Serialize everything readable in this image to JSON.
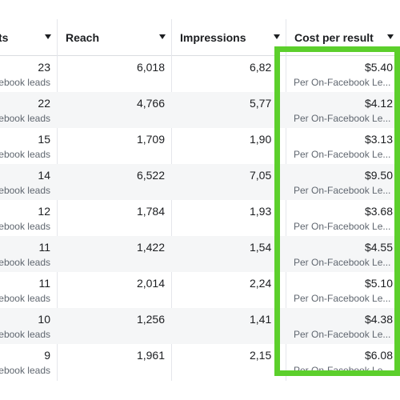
{
  "columns": {
    "results": "ts",
    "reach": "Reach",
    "impressions": "Impressions",
    "cost_per_result": "Cost per result"
  },
  "highlight_color": "#5ccf2c",
  "rows": [
    {
      "results": "23",
      "results_sub": "ebook leads",
      "reach": "6,018",
      "impressions": "6,82",
      "cost": "$5.40",
      "cost_sub": "Per On-Facebook Le..."
    },
    {
      "results": "22",
      "results_sub": "ebook leads",
      "reach": "4,766",
      "impressions": "5,77",
      "cost": "$4.12",
      "cost_sub": "Per On-Facebook Le..."
    },
    {
      "results": "15",
      "results_sub": "ebook leads",
      "reach": "1,709",
      "impressions": "1,90",
      "cost": "$3.13",
      "cost_sub": "Per On-Facebook Le..."
    },
    {
      "results": "14",
      "results_sub": "ebook leads",
      "reach": "6,522",
      "impressions": "7,05",
      "cost": "$9.50",
      "cost_sub": "Per On-Facebook Le..."
    },
    {
      "results": "12",
      "results_sub": "ebook leads",
      "reach": "1,784",
      "impressions": "1,93",
      "cost": "$3.68",
      "cost_sub": "Per On-Facebook Le..."
    },
    {
      "results": "11",
      "results_sub": "ebook leads",
      "reach": "1,422",
      "impressions": "1,54",
      "cost": "$4.55",
      "cost_sub": "Per On-Facebook Le..."
    },
    {
      "results": "11",
      "results_sub": "ebook leads",
      "reach": "2,014",
      "impressions": "2,24",
      "cost": "$5.10",
      "cost_sub": "Per On-Facebook Le..."
    },
    {
      "results": "10",
      "results_sub": "ebook leads",
      "reach": "1,256",
      "impressions": "1,41",
      "cost": "$4.38",
      "cost_sub": "Per On-Facebook Le..."
    },
    {
      "results": "9",
      "results_sub": "ebook leads",
      "reach": "1,961",
      "impressions": "2,15",
      "cost": "$6.08",
      "cost_sub": "Per On-Facebook Le..."
    }
  ]
}
